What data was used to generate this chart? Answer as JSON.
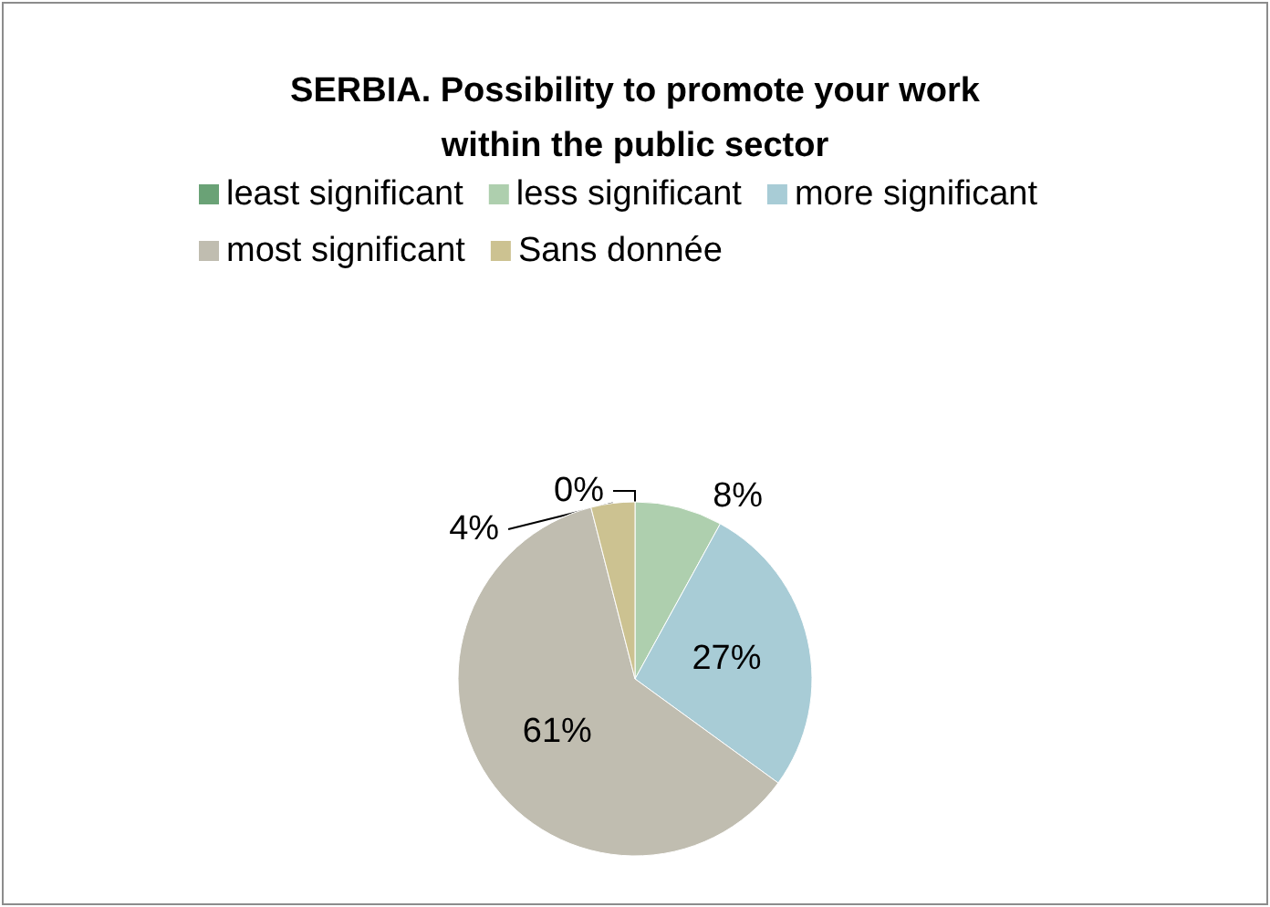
{
  "chart_data": {
    "type": "pie",
    "title": "SERBIA. Possibility to promote your work\nwithin the public sector",
    "categories": [
      "least significant",
      "less significant",
      "more significant",
      "most significant",
      "Sans donnée"
    ],
    "values": [
      0,
      8,
      27,
      61,
      4
    ],
    "colors": [
      "#6aa276",
      "#aecfae",
      "#a8ccd6",
      "#c0bdb0",
      "#ccc291"
    ],
    "value_labels": [
      "0%",
      "8%",
      "27%",
      "61%",
      "4%"
    ],
    "legend": "top"
  }
}
